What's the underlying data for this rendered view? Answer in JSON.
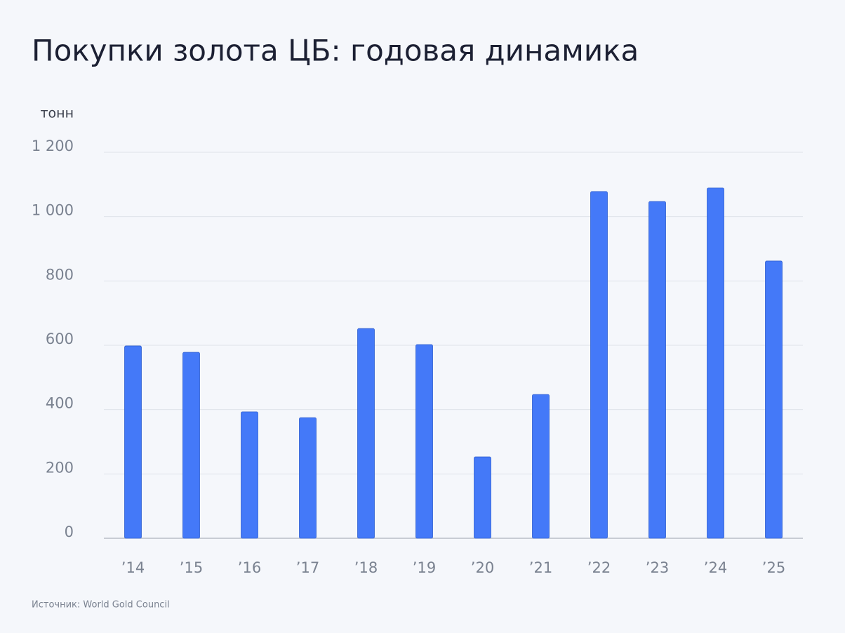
{
  "chart_data": {
    "type": "bar",
    "title": "Покупки золота ЦБ: годовая динамика",
    "y_label": "тонн",
    "source": "Источник: World Gold Council",
    "categories": [
      "’14",
      "’15",
      "’16",
      "’17",
      "’18",
      "’19",
      "’20",
      "’21",
      "’22",
      "’23",
      "’24",
      "’25"
    ],
    "values": [
      598,
      578,
      393,
      375,
      652,
      602,
      253,
      447,
      1078,
      1047,
      1089,
      862
    ],
    "color": "#4479f8",
    "ylim": [
      0,
      1200
    ],
    "yticks": [
      0,
      200,
      400,
      600,
      800,
      {
        "value": 1000,
        "label": "1 000"
      },
      {
        "value": 1200,
        "label": "1 200"
      }
    ],
    "grid": true
  }
}
